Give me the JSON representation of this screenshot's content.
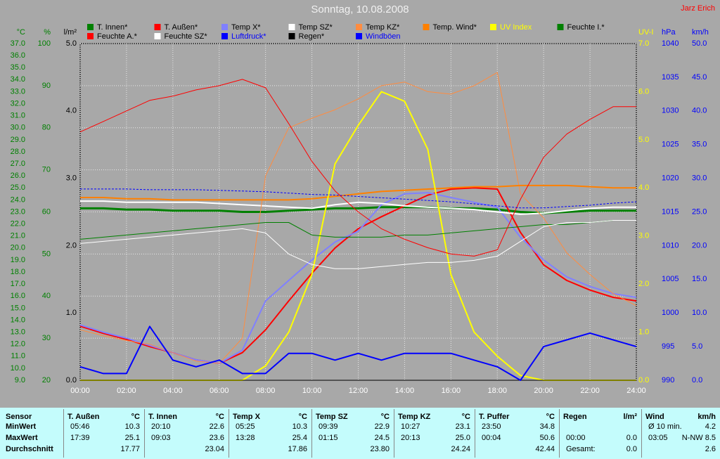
{
  "chart_data": {
    "type": "line",
    "title": "Sonntag, 10.08.2008",
    "author": "Jarz Erich",
    "x": [
      0,
      1,
      2,
      3,
      4,
      5,
      6,
      7,
      8,
      9,
      10,
      11,
      12,
      13,
      14,
      15,
      16,
      17,
      18,
      19,
      20,
      21,
      22,
      23,
      24
    ],
    "xlim": [
      0,
      24
    ],
    "xticks": [
      {
        "value": 0,
        "label": "00:00"
      },
      {
        "value": 2,
        "label": "02:00"
      },
      {
        "value": 4,
        "label": "04:00"
      },
      {
        "value": 6,
        "label": "06:00"
      },
      {
        "value": 8,
        "label": "08:00"
      },
      {
        "value": 10,
        "label": "10:00"
      },
      {
        "value": 12,
        "label": "12:00"
      },
      {
        "value": 14,
        "label": "14:00"
      },
      {
        "value": 16,
        "label": "16:00"
      },
      {
        "value": 18,
        "label": "18:00"
      },
      {
        "value": 20,
        "label": "20:00"
      },
      {
        "value": 22,
        "label": "22:00"
      },
      {
        "value": 24,
        "label": "24:00"
      }
    ],
    "grid": true,
    "axes": [
      {
        "title": "°C",
        "color": "#008000",
        "lim": [
          9,
          37
        ],
        "ticks": [
          {
            "value": 9,
            "label": "9.0"
          },
          {
            "value": 10,
            "label": "10.0"
          },
          {
            "value": 11,
            "label": "11.0"
          },
          {
            "value": 12,
            "label": "12.0"
          },
          {
            "value": 13,
            "label": "13.0"
          },
          {
            "value": 14,
            "label": "14.0"
          },
          {
            "value": 15,
            "label": "15.0"
          },
          {
            "value": 16,
            "label": "16.0"
          },
          {
            "value": 17,
            "label": "17.0"
          },
          {
            "value": 18,
            "label": "18.0"
          },
          {
            "value": 19,
            "label": "19.0"
          },
          {
            "value": 20,
            "label": "20.0"
          },
          {
            "value": 21,
            "label": "21.0"
          },
          {
            "value": 22,
            "label": "22.0"
          },
          {
            "value": 23,
            "label": "23.0"
          },
          {
            "value": 24,
            "label": "24.0"
          },
          {
            "value": 25,
            "label": "25.0"
          },
          {
            "value": 26,
            "label": "26.0"
          },
          {
            "value": 27,
            "label": "27.0"
          },
          {
            "value": 28,
            "label": "28.0"
          },
          {
            "value": 29,
            "label": "29.0"
          },
          {
            "value": 30,
            "label": "30.0"
          },
          {
            "value": 31,
            "label": "31.0"
          },
          {
            "value": 32,
            "label": "32.0"
          },
          {
            "value": 33,
            "label": "33.0"
          },
          {
            "value": 34,
            "label": "34.0"
          },
          {
            "value": 35,
            "label": "35.0"
          },
          {
            "value": 36,
            "label": "36.0"
          },
          {
            "value": 37,
            "label": "37.0"
          }
        ]
      },
      {
        "title": "%",
        "color": "#008000",
        "lim": [
          20,
          100
        ],
        "grid": true,
        "ticks": [
          20,
          30,
          40,
          50,
          60,
          70,
          80,
          90,
          100
        ]
      },
      {
        "title": "l/m²",
        "color": "#000000",
        "lim": [
          0,
          5
        ],
        "ticks": [
          {
            "value": 0,
            "label": "0.0"
          },
          {
            "value": 1,
            "label": "1.0"
          },
          {
            "value": 2,
            "label": "2.0"
          },
          {
            "value": 3,
            "label": "3.0"
          },
          {
            "value": 4,
            "label": "4.0"
          },
          {
            "value": 5,
            "label": "5.0"
          }
        ]
      },
      {
        "title": "UV-I",
        "color": "#ffff00",
        "lim": [
          0,
          7
        ],
        "ticks": [
          {
            "value": 0,
            "label": "0.0"
          },
          {
            "value": 1,
            "label": "1.0"
          },
          {
            "value": 2,
            "label": "2.0"
          },
          {
            "value": 3,
            "label": "3.0"
          },
          {
            "value": 4,
            "label": "4.0"
          },
          {
            "value": 5,
            "label": "5.0"
          },
          {
            "value": 6,
            "label": "6.0"
          },
          {
            "value": 7,
            "label": "7.0"
          }
        ]
      },
      {
        "title": "hPa",
        "color": "#0000ff",
        "lim": [
          990,
          1040
        ],
        "ticks": [
          990,
          995,
          1000,
          1005,
          1010,
          1015,
          1020,
          1025,
          1030,
          1035,
          1040
        ]
      },
      {
        "title": "km/h",
        "color": "#0000ff",
        "lim": [
          0,
          50
        ],
        "ticks": [
          {
            "value": 0,
            "label": "0.0"
          },
          {
            "value": 5,
            "label": "5.0"
          },
          {
            "value": 10,
            "label": "10.0"
          },
          {
            "value": 15,
            "label": "15.0"
          },
          {
            "value": 20,
            "label": "20.0"
          },
          {
            "value": 25,
            "label": "25.0"
          },
          {
            "value": 30,
            "label": "30.0"
          },
          {
            "value": 35,
            "label": "35.0"
          },
          {
            "value": 40,
            "label": "40.0"
          },
          {
            "value": 45,
            "label": "45.0"
          },
          {
            "value": 50,
            "label": "50.0"
          }
        ]
      }
    ],
    "series": [
      {
        "name": "T. Innen*",
        "color": "#008000",
        "axis": 0,
        "line_width": 3,
        "values": [
          23.3,
          23.3,
          23.2,
          23.2,
          23.1,
          23.1,
          23.1,
          23.0,
          23.0,
          23.1,
          23.2,
          23.3,
          23.3,
          23.4,
          23.4,
          23.4,
          23.3,
          23.3,
          23.2,
          23.0,
          22.9,
          23.0,
          23.1,
          23.1,
          23.1
        ]
      },
      {
        "name": "T. Außen*",
        "color": "#ff0000",
        "axis": 0,
        "line_width": 2,
        "values": [
          13.5,
          12.9,
          12.4,
          11.8,
          11.3,
          10.7,
          10.4,
          11.3,
          13.2,
          15.6,
          17.9,
          20.0,
          21.6,
          22.6,
          23.5,
          24.4,
          24.9,
          25.0,
          24.9,
          21.3,
          18.6,
          17.3,
          16.5,
          15.9,
          15.6
        ]
      },
      {
        "name": "Temp X*",
        "color": "#8080ff",
        "axis": 0,
        "line_width": 2,
        "values": [
          13.6,
          13.0,
          12.5,
          11.9,
          11.3,
          10.7,
          10.4,
          11.5,
          15.6,
          17.3,
          19.0,
          20.5,
          21.4,
          23.6,
          24.5,
          24.6,
          24.2,
          23.8,
          23.4,
          20.9,
          19.0,
          17.6,
          16.8,
          16.2,
          15.9
        ]
      },
      {
        "name": "Temp SZ*",
        "color": "#ffffff",
        "axis": 0,
        "line_width": 2,
        "values": [
          23.9,
          23.9,
          23.8,
          23.8,
          23.8,
          23.8,
          23.7,
          23.6,
          23.5,
          23.4,
          23.3,
          23.6,
          23.8,
          23.7,
          23.5,
          23.4,
          23.3,
          23.2,
          23.0,
          22.8,
          22.9,
          23.1,
          23.3,
          23.4,
          23.4
        ]
      },
      {
        "name": "Temp KZ*",
        "color": "#ff8c40",
        "axis": 0,
        "line_width": 1,
        "values": [
          13.2,
          12.7,
          12.3,
          12.0,
          11.3,
          10.6,
          10.4,
          12.5,
          26.0,
          30.0,
          30.8,
          31.5,
          32.4,
          33.5,
          33.8,
          33.0,
          32.8,
          33.5,
          34.6,
          24.5,
          22.5,
          19.6,
          17.8,
          16.2,
          15.2
        ]
      },
      {
        "name": "Temp. Wind*",
        "color": "#ff8000",
        "axis": 0,
        "line_width": 2,
        "values": [
          24.2,
          24.2,
          24.1,
          24.1,
          24.0,
          24.0,
          24.0,
          24.0,
          24.0,
          24.0,
          24.1,
          24.3,
          24.5,
          24.7,
          24.8,
          24.9,
          25.0,
          25.1,
          25.1,
          25.2,
          25.2,
          25.2,
          25.1,
          25.0,
          25.0
        ]
      },
      {
        "name": "UV Index",
        "color": "#ffff00",
        "label_color": "#ffff00",
        "axis": 3,
        "line_width": 2,
        "values": [
          0,
          0,
          0,
          0,
          0,
          0,
          0,
          0,
          0.3,
          1.0,
          2.2,
          4.5,
          5.3,
          6.0,
          5.8,
          4.8,
          2.2,
          1.0,
          0.5,
          0.1,
          0,
          0,
          0,
          0,
          0
        ]
      },
      {
        "name": "Feuchte I.*",
        "color": "#008000",
        "axis": 1,
        "line_width": 1,
        "values": [
          53.5,
          54.0,
          54.5,
          55.0,
          55.5,
          56.0,
          56.5,
          57.0,
          57.5,
          57.5,
          54.5,
          54.0,
          54.0,
          54.0,
          54.5,
          54.5,
          55.0,
          55.5,
          56.0,
          56.5,
          57.0,
          57.0,
          57.5,
          58.0,
          58.0
        ]
      },
      {
        "name": "Feuchte A.*",
        "color": "#ff0000",
        "axis": 1,
        "line_width": 1,
        "values": [
          79.0,
          81.5,
          84.0,
          86.5,
          87.5,
          89.0,
          90.0,
          91.5,
          89.5,
          81.0,
          72.0,
          65.0,
          60.0,
          56.0,
          53.5,
          51.5,
          50.0,
          49.5,
          51.0,
          63.0,
          73.0,
          78.5,
          82.0,
          85.0,
          85.0
        ]
      },
      {
        "name": "Feuchte SZ*",
        "color": "#ffffff",
        "axis": 1,
        "line_width": 1,
        "values": [
          52.5,
          53.0,
          53.5,
          54.0,
          54.5,
          55.0,
          55.5,
          56.0,
          55.0,
          50.0,
          47.5,
          46.5,
          46.5,
          47.0,
          47.5,
          48.0,
          48.0,
          48.5,
          49.5,
          53.0,
          56.5,
          57.5,
          57.5,
          58.0,
          58.0
        ]
      },
      {
        "name": "Luftdruck*",
        "color": "#0000ff",
        "label_color": "#0000ff",
        "axis": 4,
        "line_width": 1,
        "dashed": true,
        "values": [
          1018.4,
          1018.4,
          1018.4,
          1018.3,
          1018.3,
          1018.3,
          1018.2,
          1018.1,
          1018.0,
          1017.8,
          1017.6,
          1017.5,
          1017.3,
          1017.1,
          1016.9,
          1016.7,
          1016.5,
          1016.2,
          1015.9,
          1015.6,
          1015.6,
          1015.8,
          1016.0,
          1016.3,
          1016.5
        ]
      },
      {
        "name": "Regen*",
        "color": "#000000",
        "axis": 2,
        "line_width": 1,
        "values": [
          0,
          0,
          0,
          0,
          0,
          0,
          0,
          0,
          0,
          0,
          0,
          0,
          0,
          0,
          0,
          0,
          0,
          0,
          0,
          0,
          0,
          0,
          0,
          0,
          0
        ]
      },
      {
        "name": "Windböen",
        "color": "#0000ff",
        "label_color": "#0000ff",
        "axis": 5,
        "line_width": 2,
        "values": [
          2,
          1,
          1,
          8,
          3,
          2,
          3,
          1,
          1,
          4,
          4,
          3,
          4,
          3,
          4,
          4,
          4,
          3,
          2,
          0,
          5,
          6,
          7,
          6,
          5
        ]
      }
    ]
  },
  "table": {
    "sensor_header": "Sensor",
    "row_labels": [
      "MinWert",
      "MaxWert",
      "Durchschnitt"
    ],
    "columns": [
      {
        "name": "T. Außen",
        "unit": "°C",
        "rows": [
          {
            "time": "05:46",
            "value": "10.3"
          },
          {
            "time": "17:39",
            "value": "25.1"
          },
          {
            "value": "17.77"
          }
        ]
      },
      {
        "name": "T. Innen",
        "unit": "°C",
        "rows": [
          {
            "time": "20:10",
            "value": "22.6"
          },
          {
            "time": "09:03",
            "value": "23.6"
          },
          {
            "value": "23.04"
          }
        ]
      },
      {
        "name": "Temp X",
        "unit": "°C",
        "rows": [
          {
            "time": "05:25",
            "value": "10.3"
          },
          {
            "time": "13:28",
            "value": "25.4"
          },
          {
            "value": "17.86"
          }
        ]
      },
      {
        "name": "Temp SZ",
        "unit": "°C",
        "rows": [
          {
            "time": "09:39",
            "value": "22.9"
          },
          {
            "time": "01:15",
            "value": "24.5"
          },
          {
            "value": "23.80"
          }
        ]
      },
      {
        "name": "Temp KZ",
        "unit": "°C",
        "rows": [
          {
            "time": "10:27",
            "value": "23.1"
          },
          {
            "time": "20:13",
            "value": "25.0"
          },
          {
            "value": "24.24"
          }
        ]
      },
      {
        "name": "T. Puffer",
        "unit": "°C",
        "rows": [
          {
            "time": "23:50",
            "value": "34.8"
          },
          {
            "time": "00:04",
            "value": "50.6"
          },
          {
            "value": "42.44"
          }
        ]
      },
      {
        "name": "Regen",
        "unit": "l/m²",
        "rows": [
          null,
          {
            "time": "00:00",
            "value": "0.0"
          },
          {
            "time": "Gesamt:",
            "value": "0.0"
          }
        ]
      },
      {
        "name": "Wind",
        "unit": "km/h",
        "rows": [
          {
            "time": "Ø 10 min.",
            "value": "4.2"
          },
          {
            "time": "03:05",
            "value": "N-NW 8.5"
          },
          {
            "value": "2.6"
          }
        ]
      }
    ]
  }
}
